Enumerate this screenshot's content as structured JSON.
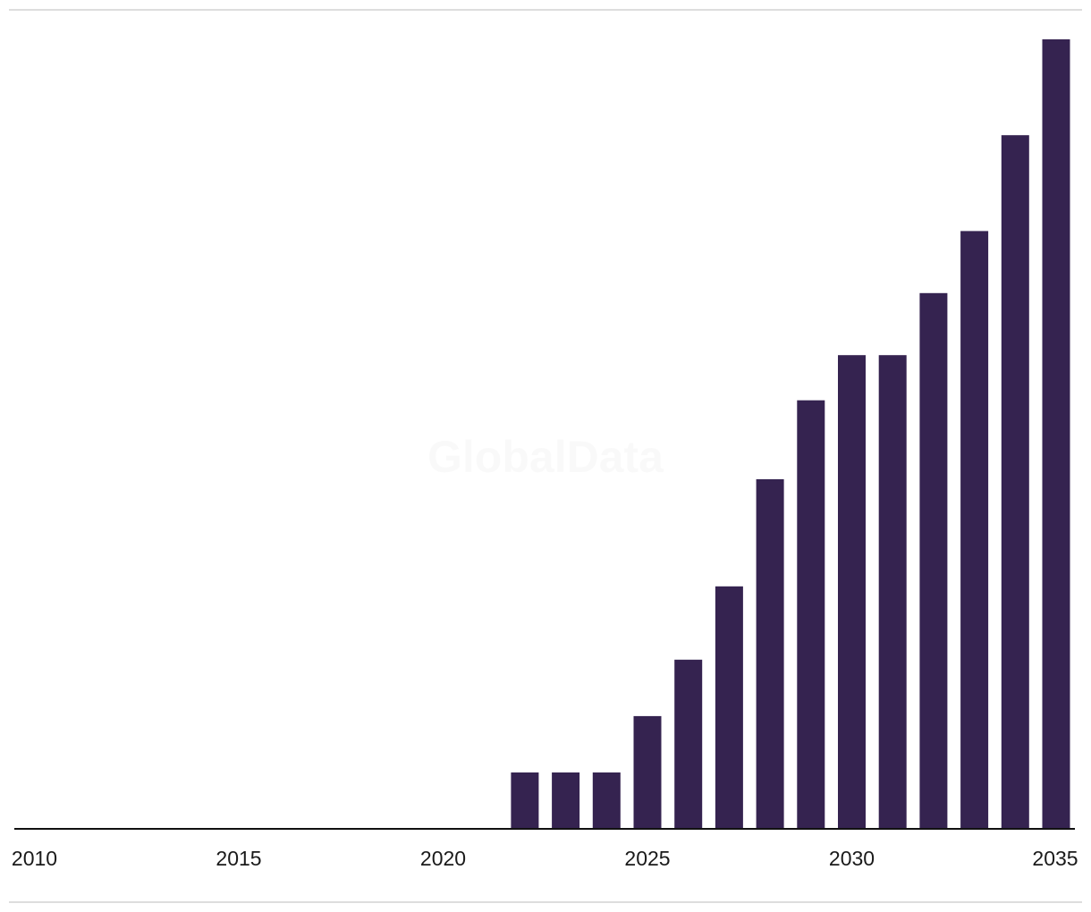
{
  "watermark": "GlobalData",
  "colors": {
    "bar": "#352350",
    "axis": "#111111",
    "frame": "#dddddd"
  },
  "chart_data": {
    "type": "bar",
    "title": "",
    "xlabel": "",
    "ylabel": "",
    "x": [
      2010,
      2011,
      2012,
      2013,
      2014,
      2015,
      2016,
      2017,
      2018,
      2019,
      2020,
      2021,
      2022,
      2023,
      2024,
      2025,
      2026,
      2027,
      2028,
      2029,
      2030,
      2031,
      2032,
      2033,
      2034,
      2035
    ],
    "values": [
      0,
      0,
      0,
      0,
      0,
      0,
      0,
      0,
      0,
      0,
      0,
      0,
      1,
      1,
      1,
      2,
      3,
      4.3,
      6.2,
      7.6,
      8.4,
      8.4,
      9.5,
      10.6,
      12.3,
      14
    ],
    "xticks": [
      "2010",
      "2015",
      "2020",
      "2025",
      "2030",
      "2035"
    ],
    "xlim": [
      2010,
      2035
    ],
    "ylim": [
      0,
      14
    ],
    "grid": false,
    "legend": "none"
  }
}
